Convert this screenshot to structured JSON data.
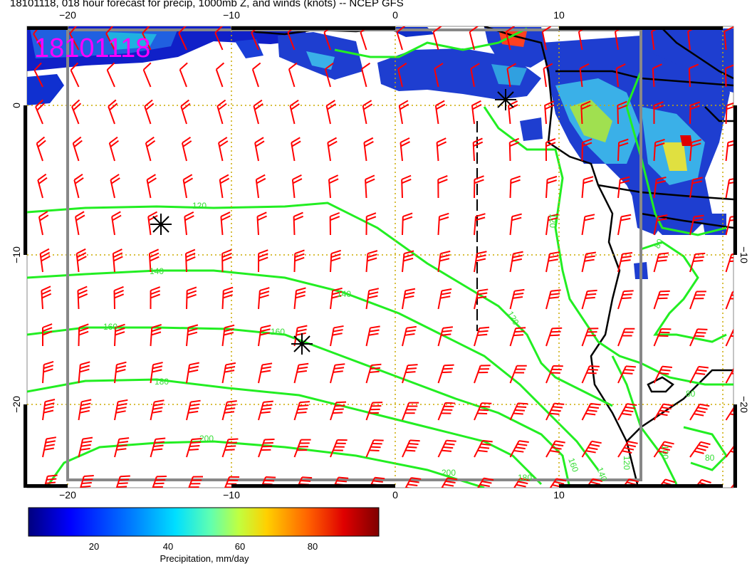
{
  "title": "18101118, 018 hour forecast for precip, 1000mb Z, and winds (knots) -- NCEP GFS",
  "stamp": "18101118",
  "axes": {
    "lon_ticks": [
      "−20",
      "−10",
      "0",
      "10"
    ],
    "lat_ticks_left": [
      "0",
      "−10",
      "−20"
    ],
    "lat_ticks_right": [
      "−10",
      "−20"
    ]
  },
  "contour_labels": [
    "120",
    "140",
    "140",
    "160",
    "160",
    "180",
    "180",
    "200",
    "200",
    "120",
    "160",
    "140",
    "120",
    "100",
    "80",
    "80",
    "80",
    "120"
  ],
  "colorbar": {
    "title": "Precipitation, mm/day",
    "ticks": [
      "20",
      "40",
      "60",
      "80"
    ],
    "colors": [
      "#00007f",
      "#0000ff",
      "#0080ff",
      "#00dfff",
      "#60ffb0",
      "#c0ff40",
      "#ffd000",
      "#ff6000",
      "#df0000",
      "#7f0000"
    ]
  },
  "colors": {
    "wind_barbs": "#ff0000",
    "contours": "#22ee22",
    "grid": "#ccaa00",
    "stamp": "#ff00ff"
  },
  "markers": [
    "low-pressure-marker",
    "high-pressure-marker",
    "high-pressure-marker"
  ]
}
